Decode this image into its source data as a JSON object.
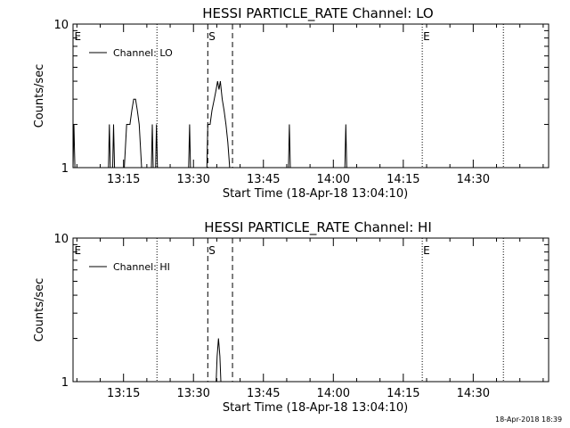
{
  "footer": {
    "timestamp": "18-Apr-2018 18:39"
  },
  "chart_data": [
    {
      "type": "line",
      "title": "HESSI PARTICLE_RATE Channel: LO",
      "xlabel": "Start Time (18-Apr-18 13:04:10)",
      "ylabel": "Counts/sec",
      "yscale": "log",
      "ylim": [
        1,
        10
      ],
      "y_ticks": [
        "1",
        "10"
      ],
      "xlim_minutes_after_start": [
        0,
        102
      ],
      "x_ticks": [
        {
          "minute": 10.83,
          "label": "13:15"
        },
        {
          "minute": 25.83,
          "label": "13:30"
        },
        {
          "minute": 40.83,
          "label": "13:45"
        },
        {
          "minute": 55.83,
          "label": "14:00"
        },
        {
          "minute": 70.83,
          "label": "14:15"
        },
        {
          "minute": 85.83,
          "label": "14:30"
        }
      ],
      "legend": {
        "location": "top-left",
        "entries": [
          "Channel: LO"
        ]
      },
      "markers": [
        {
          "minute": 0.1,
          "label": "E",
          "style": "none"
        },
        {
          "minute": 18.0,
          "label": "",
          "style": "dotted"
        },
        {
          "minute": 28.9,
          "label": "S",
          "style": "dashed"
        },
        {
          "minute": 34.2,
          "label": "",
          "style": "dashed"
        },
        {
          "minute": 74.9,
          "label": "E",
          "style": "dotted"
        },
        {
          "minute": 92.3,
          "label": "",
          "style": "dotted"
        }
      ],
      "series": [
        {
          "name": "Channel: LO",
          "points": [
            [
              0.0,
              1
            ],
            [
              0.2,
              2
            ],
            [
              0.4,
              1
            ],
            [
              7.6,
              1
            ],
            [
              7.8,
              2
            ],
            [
              8.0,
              1
            ],
            [
              8.5,
              1
            ],
            [
              8.7,
              2
            ],
            [
              8.9,
              1
            ],
            [
              11.0,
              1
            ],
            [
              11.5,
              2
            ],
            [
              12.2,
              2
            ],
            [
              12.6,
              2.5
            ],
            [
              13.0,
              3
            ],
            [
              13.4,
              3
            ],
            [
              13.8,
              2.5
            ],
            [
              14.2,
              2
            ],
            [
              14.7,
              1
            ],
            [
              16.8,
              1
            ],
            [
              17.0,
              2
            ],
            [
              17.2,
              1
            ],
            [
              17.7,
              1
            ],
            [
              17.9,
              2
            ],
            [
              18.1,
              1
            ],
            [
              24.8,
              1
            ],
            [
              25.0,
              2
            ],
            [
              25.2,
              1
            ],
            [
              28.7,
              1
            ],
            [
              28.9,
              2
            ],
            [
              29.4,
              2
            ],
            [
              29.8,
              2.5
            ],
            [
              30.3,
              3
            ],
            [
              30.7,
              3.5
            ],
            [
              31.0,
              4
            ],
            [
              31.3,
              3.5
            ],
            [
              31.6,
              4
            ],
            [
              32.0,
              3
            ],
            [
              32.4,
              2.5
            ],
            [
              32.8,
              2
            ],
            [
              33.2,
              1.5
            ],
            [
              33.6,
              1
            ],
            [
              46.2,
              1
            ],
            [
              46.4,
              2
            ],
            [
              46.6,
              1
            ],
            [
              58.3,
              1
            ],
            [
              58.5,
              2
            ],
            [
              58.7,
              1
            ]
          ]
        }
      ]
    },
    {
      "type": "line",
      "title": "HESSI PARTICLE_RATE Channel: HI",
      "xlabel": "Start Time (18-Apr-18 13:04:10)",
      "ylabel": "Counts/sec",
      "yscale": "log",
      "ylim": [
        1,
        10
      ],
      "y_ticks": [
        "1",
        "10"
      ],
      "xlim_minutes_after_start": [
        0,
        102
      ],
      "x_ticks": [
        {
          "minute": 10.83,
          "label": "13:15"
        },
        {
          "minute": 25.83,
          "label": "13:30"
        },
        {
          "minute": 40.83,
          "label": "13:45"
        },
        {
          "minute": 55.83,
          "label": "14:00"
        },
        {
          "minute": 70.83,
          "label": "14:15"
        },
        {
          "minute": 85.83,
          "label": "14:30"
        }
      ],
      "legend": {
        "location": "top-left",
        "entries": [
          "Channel: HI"
        ]
      },
      "markers": [
        {
          "minute": 0.1,
          "label": "E",
          "style": "none"
        },
        {
          "minute": 18.0,
          "label": "",
          "style": "dotted"
        },
        {
          "minute": 28.9,
          "label": "S",
          "style": "dashed"
        },
        {
          "minute": 34.2,
          "label": "",
          "style": "dashed"
        },
        {
          "minute": 74.9,
          "label": "E",
          "style": "dotted"
        },
        {
          "minute": 92.3,
          "label": "",
          "style": "dotted"
        }
      ],
      "series": [
        {
          "name": "Channel: HI",
          "points": [
            [
              30.7,
              1
            ],
            [
              30.9,
              1.5
            ],
            [
              31.2,
              2
            ],
            [
              31.5,
              1.5
            ],
            [
              31.7,
              1
            ]
          ]
        }
      ]
    }
  ]
}
